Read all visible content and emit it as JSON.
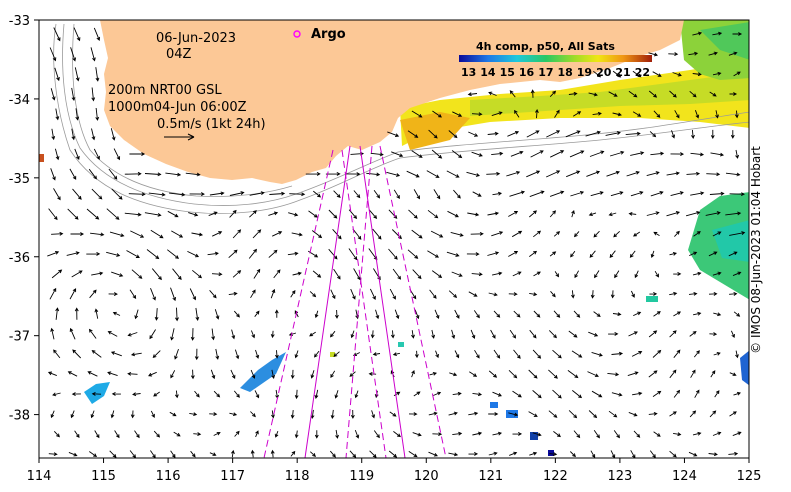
{
  "map": {
    "date": "06-Jun-2023",
    "hour": "04Z",
    "info_line1": "200m  NRT00 GSL",
    "info_line2": "1000m04-Jun 06:00Z",
    "scale_label": "0.5m/s (1kt 24h)",
    "argo_label": "Argo",
    "credit": "© IMOS 08-Jun-2023 01:04 Hobart",
    "colorbar": {
      "title": "4h comp, p50, All Sats",
      "ticks": [
        "13",
        "14",
        "15",
        "16",
        "17",
        "18",
        "19",
        "20",
        "21",
        "22"
      ],
      "min": 12.5,
      "max": 22.5
    },
    "axes": {
      "lon_ticks": [
        "114",
        "115",
        "116",
        "117",
        "118",
        "119",
        "120",
        "121",
        "122",
        "123",
        "124",
        "125"
      ],
      "lat_ticks": [
        "-33",
        "-34",
        "-35",
        "-36",
        "-37",
        "-38"
      ],
      "lon_range": [
        114,
        125
      ],
      "lat_range": [
        -38.55,
        -33.0
      ]
    },
    "colors": {
      "land": "#fcc896",
      "track": "#cc00cc",
      "argo": "#ff00ff"
    }
  }
}
